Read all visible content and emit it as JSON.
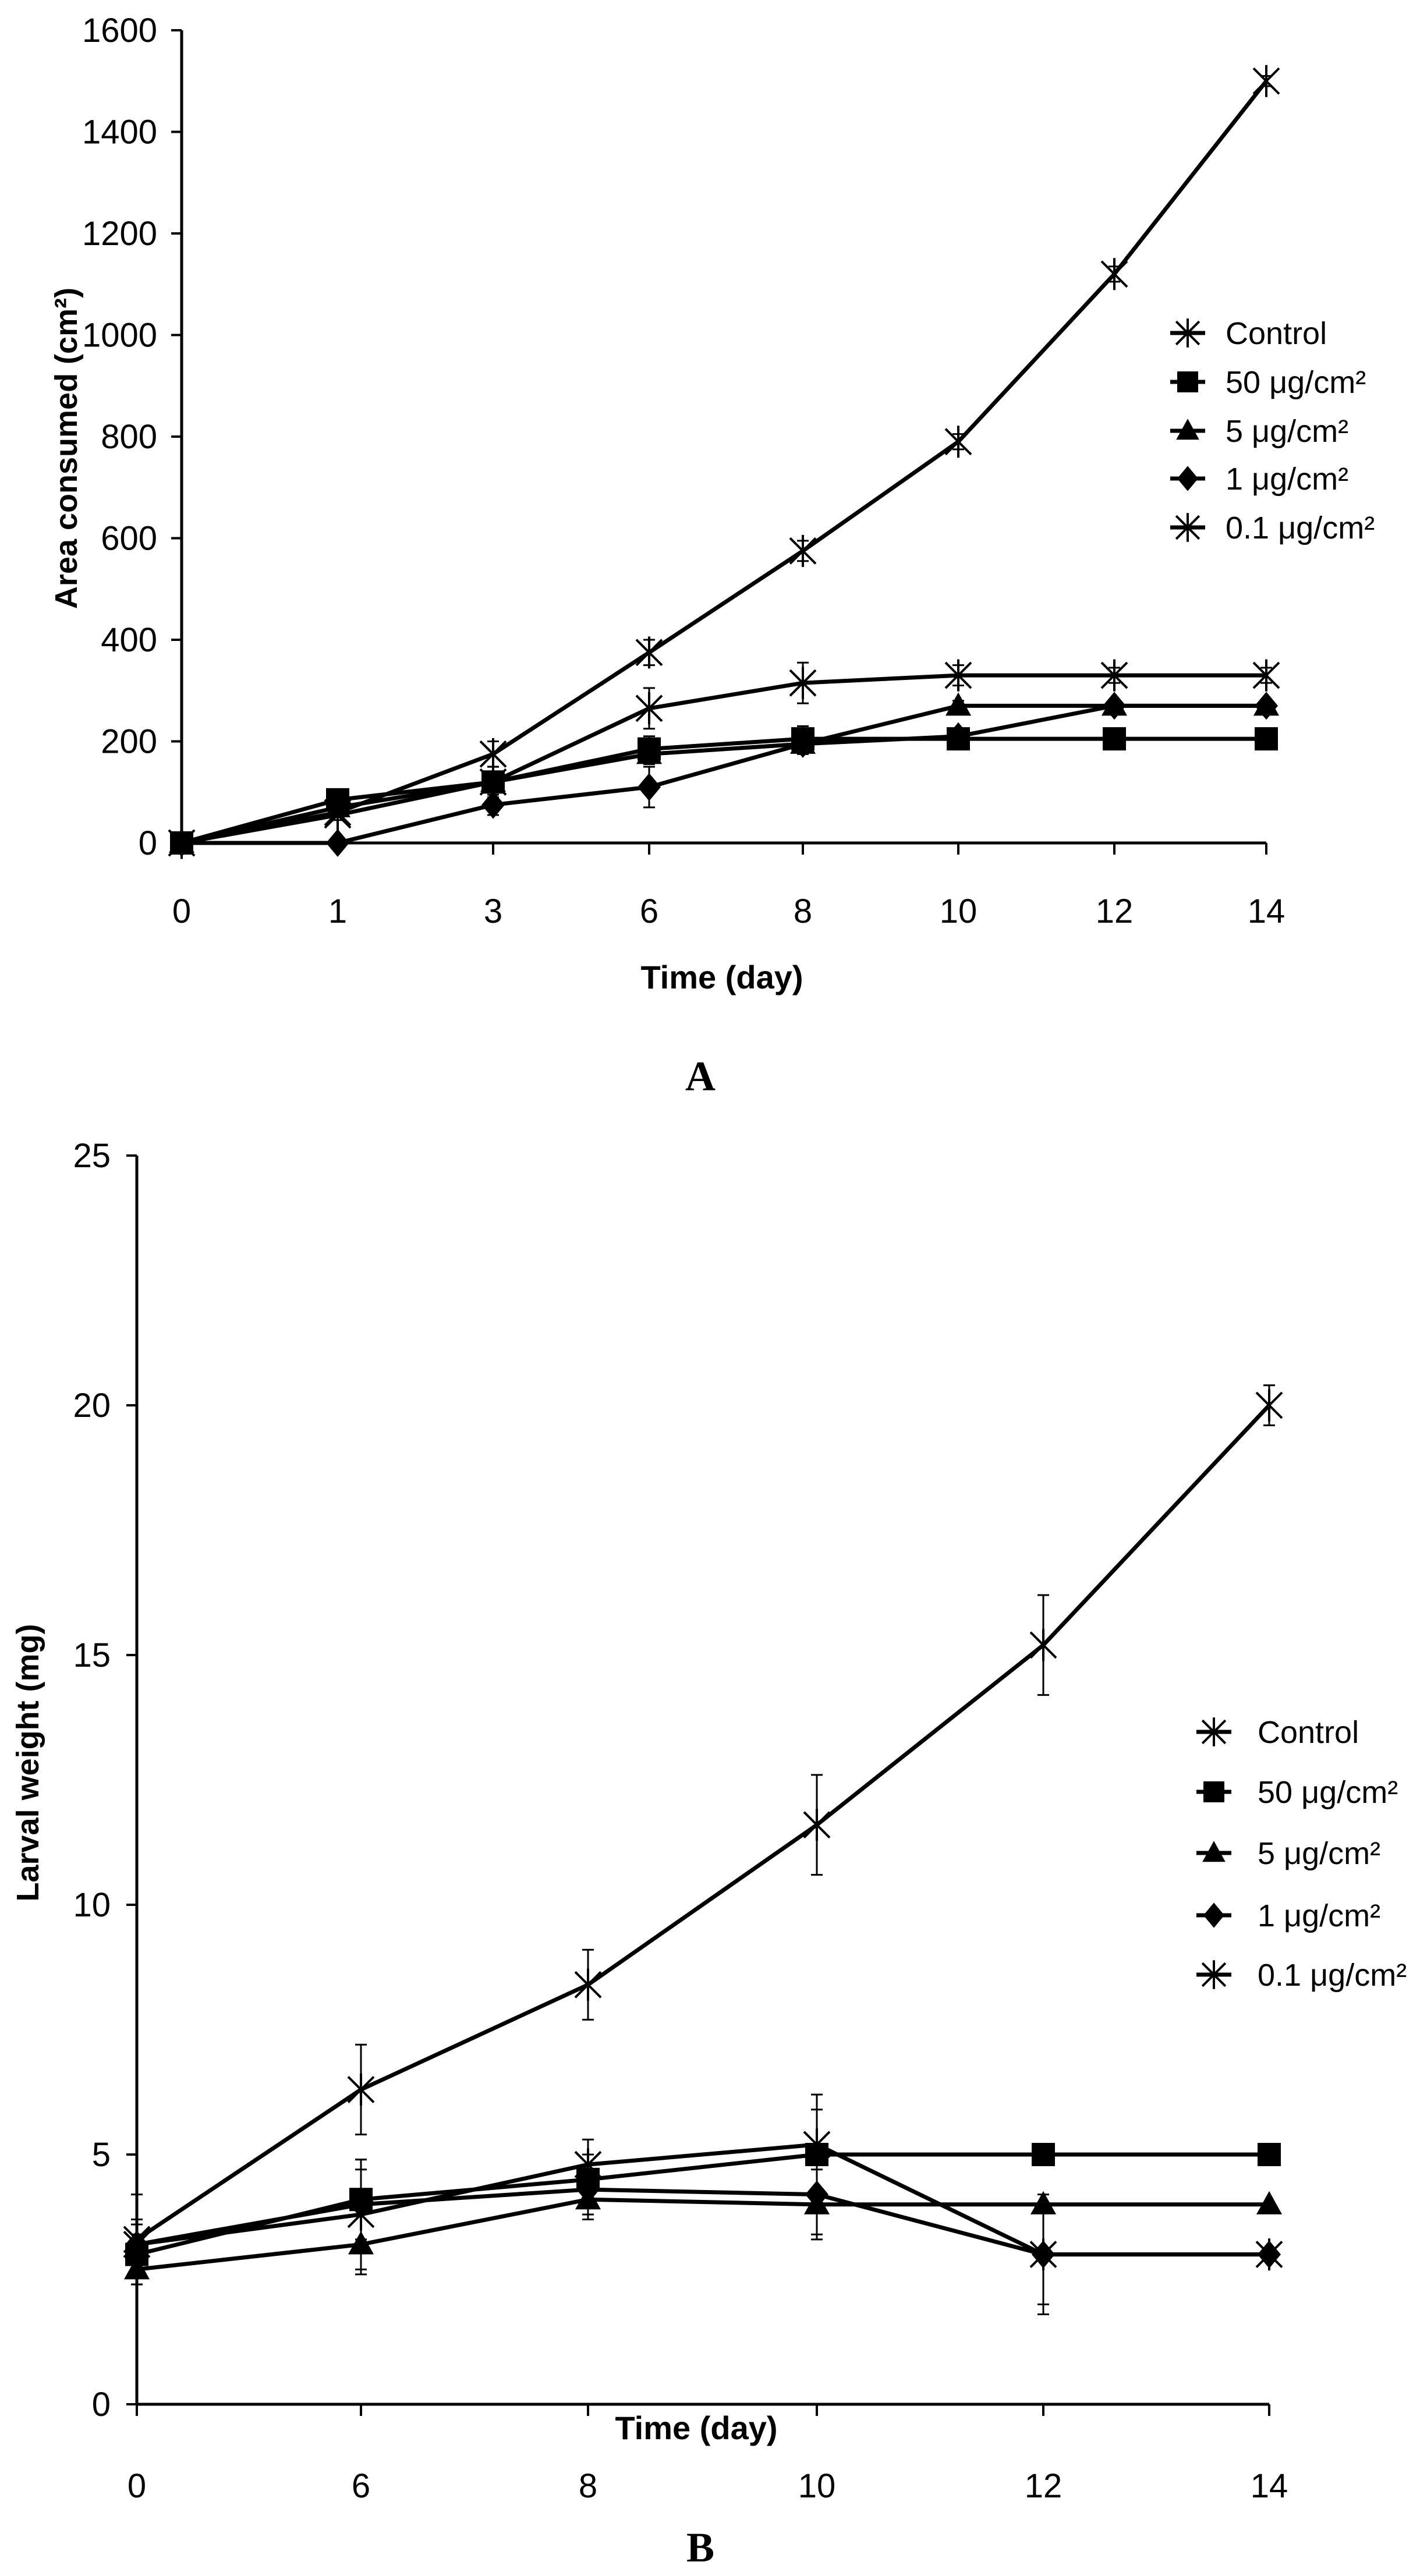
{
  "chart_data": [
    {
      "type": "line",
      "panel_label": "A",
      "xlabel": "Time (day)",
      "ylabel": "Area consumed (cm²)",
      "categories": [
        "0",
        "1",
        "3",
        "6",
        "8",
        "10",
        "12",
        "14"
      ],
      "yticks": [
        "0",
        "200",
        "400",
        "600",
        "800",
        "1000",
        "1200",
        "1400",
        "1600"
      ],
      "ylim": [
        0,
        1600
      ],
      "legend_position": "right",
      "series": [
        {
          "name": "Control",
          "marker": "asterisk",
          "values": [
            0,
            60,
            175,
            375,
            575,
            790,
            1120,
            1500
          ],
          "errors": [
            0,
            0,
            25,
            25,
            20,
            15,
            15,
            10
          ]
        },
        {
          "name": "50 μg/cm²",
          "marker": "square",
          "values": [
            0,
            85,
            120,
            185,
            205,
            205,
            205,
            205
          ],
          "errors": [
            0,
            10,
            15,
            25,
            25,
            15,
            5,
            5
          ]
        },
        {
          "name": "5 μg/cm²",
          "marker": "triangle",
          "values": [
            0,
            70,
            120,
            175,
            195,
            270,
            270,
            270
          ],
          "errors": [
            0,
            10,
            15,
            20,
            15,
            10,
            10,
            10
          ]
        },
        {
          "name": "1 μg/cm²",
          "marker": "diamond",
          "values": [
            0,
            0,
            75,
            110,
            195,
            210,
            270,
            270
          ],
          "errors": [
            0,
            0,
            20,
            40,
            20,
            15,
            10,
            10
          ]
        },
        {
          "name": "0.1 μg/cm²",
          "marker": "asterisk",
          "values": [
            0,
            55,
            120,
            265,
            315,
            330,
            330,
            330
          ],
          "errors": [
            0,
            10,
            30,
            40,
            40,
            20,
            15,
            15
          ]
        }
      ]
    },
    {
      "type": "line",
      "panel_label": "B",
      "xlabel": "Time (day)",
      "ylabel": "Larval weight (mg)",
      "categories": [
        "0",
        "6",
        "8",
        "10",
        "12",
        "14"
      ],
      "yticks": [
        "0",
        "5",
        "10",
        "15",
        "20",
        "25"
      ],
      "ylim": [
        0,
        25
      ],
      "legend_position": "right",
      "series": [
        {
          "name": "Control",
          "marker": "asterisk",
          "values": [
            3.3,
            6.3,
            8.4,
            11.6,
            15.2,
            20.0
          ],
          "errors": [
            0.9,
            0.9,
            0.7,
            1.0,
            1.0,
            0.4
          ]
        },
        {
          "name": "50 μg/cm²",
          "marker": "square",
          "values": [
            3.0,
            4.1,
            4.5,
            5.0,
            5.0,
            5.0
          ],
          "errors": [
            0.4,
            0.8,
            0.5,
            0.9,
            0.0,
            0.0
          ]
        },
        {
          "name": "5 μg/cm²",
          "marker": "triangle",
          "values": [
            2.7,
            3.2,
            4.1,
            4.0,
            4.0,
            4.0
          ],
          "errors": [
            0.3,
            0.6,
            0.4,
            0.7,
            0.0,
            0.0
          ]
        },
        {
          "name": "1 μg/cm²",
          "marker": "diamond",
          "values": [
            3.2,
            4.0,
            4.3,
            4.2,
            3.0,
            3.0
          ],
          "errors": [
            0.4,
            0.7,
            0.5,
            0.8,
            1.2,
            0.0
          ]
        },
        {
          "name": "0.1 μg/cm²",
          "marker": "asterisk",
          "values": [
            3.2,
            3.8,
            4.8,
            5.2,
            3.0,
            3.0
          ],
          "errors": [
            0.5,
            1.1,
            0.5,
            1.0,
            1.0,
            0.0
          ]
        }
      ]
    }
  ]
}
